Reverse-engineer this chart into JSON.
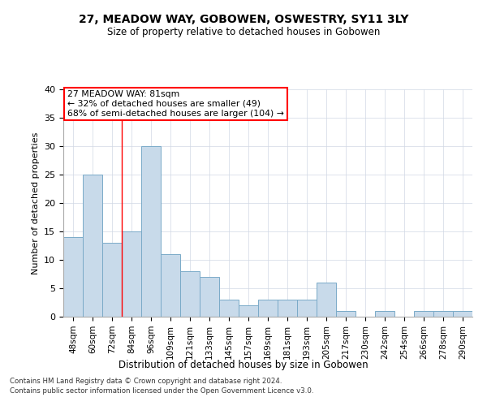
{
  "title1": "27, MEADOW WAY, GOBOWEN, OSWESTRY, SY11 3LY",
  "title2": "Size of property relative to detached houses in Gobowen",
  "xlabel": "Distribution of detached houses by size in Gobowen",
  "ylabel": "Number of detached properties",
  "categories": [
    "48sqm",
    "60sqm",
    "72sqm",
    "84sqm",
    "96sqm",
    "109sqm",
    "121sqm",
    "133sqm",
    "145sqm",
    "157sqm",
    "169sqm",
    "181sqm",
    "193sqm",
    "205sqm",
    "217sqm",
    "230sqm",
    "242sqm",
    "254sqm",
    "266sqm",
    "278sqm",
    "290sqm"
  ],
  "values": [
    14,
    25,
    13,
    15,
    30,
    11,
    8,
    7,
    3,
    2,
    3,
    3,
    3,
    6,
    1,
    0,
    1,
    0,
    1,
    1,
    1
  ],
  "bar_color": "#c8daea",
  "bar_edge_color": "#7aaac8",
  "ylim": [
    0,
    40
  ],
  "yticks": [
    0,
    5,
    10,
    15,
    20,
    25,
    30,
    35,
    40
  ],
  "property_line_x": 2.5,
  "annotation_line1": "27 MEADOW WAY: 81sqm",
  "annotation_line2": "← 32% of detached houses are smaller (49)",
  "annotation_line3": "68% of semi-detached houses are larger (104) →",
  "footer_line1": "Contains HM Land Registry data © Crown copyright and database right 2024.",
  "footer_line2": "Contains public sector information licensed under the Open Government Licence v3.0.",
  "background_color": "#ffffff",
  "grid_color": "#d0d8e4"
}
